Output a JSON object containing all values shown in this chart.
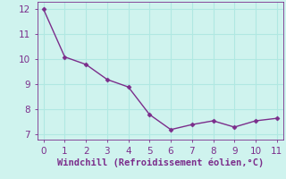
{
  "x": [
    0,
    1,
    2,
    3,
    4,
    5,
    6,
    7,
    8,
    9,
    10,
    11
  ],
  "y": [
    12.0,
    10.1,
    9.8,
    9.2,
    8.9,
    7.8,
    7.2,
    7.4,
    7.55,
    7.3,
    7.55,
    7.65
  ],
  "xlim": [
    -0.3,
    11.3
  ],
  "ylim": [
    6.8,
    12.3
  ],
  "yticks": [
    7,
    8,
    9,
    10,
    11,
    12
  ],
  "xticks": [
    0,
    1,
    2,
    3,
    4,
    5,
    6,
    7,
    8,
    9,
    10,
    11
  ],
  "xlabel": "Windchill (Refroidissement éolien,°C)",
  "line_color": "#7B2D8B",
  "marker": "D",
  "marker_size": 2.5,
  "line_width": 1.0,
  "bg_color": "#cff3ee",
  "grid_color": "#b0e8e2",
  "tick_color": "#7B2D8B",
  "tick_label_fontsize": 7.5,
  "xlabel_fontsize": 7.5
}
